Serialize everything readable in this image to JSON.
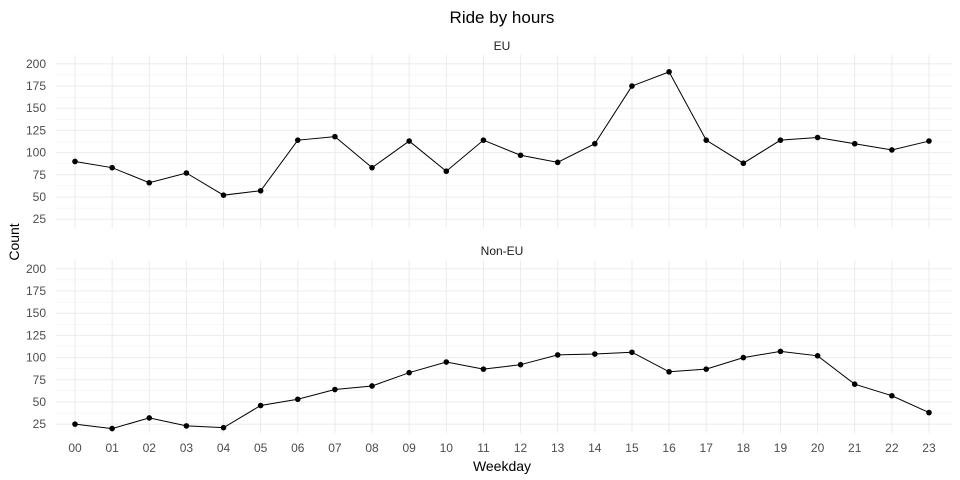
{
  "chart_data": {
    "type": "line",
    "title": "Ride by hours",
    "xlabel": "Weekday",
    "ylabel": "Count",
    "ylim": [
      15,
      210
    ],
    "yticks": [
      25,
      50,
      75,
      100,
      125,
      150,
      175,
      200
    ],
    "grid": true,
    "categories": [
      "00",
      "01",
      "02",
      "03",
      "04",
      "05",
      "06",
      "07",
      "08",
      "09",
      "10",
      "11",
      "12",
      "13",
      "14",
      "15",
      "16",
      "17",
      "18",
      "19",
      "20",
      "21",
      "22",
      "23"
    ],
    "panels": [
      {
        "strip": "EU",
        "values": [
          90,
          83,
          66,
          77,
          52,
          57,
          114,
          118,
          83,
          113,
          79,
          114,
          97,
          89,
          110,
          175,
          191,
          114,
          88,
          114,
          117,
          110,
          103,
          113
        ]
      },
      {
        "strip": "Non-EU",
        "values": [
          25,
          20,
          32,
          23,
          21,
          46,
          53,
          64,
          68,
          83,
          95,
          87,
          92,
          103,
          104,
          106,
          84,
          87,
          100,
          107,
          102,
          70,
          57,
          38
        ]
      }
    ]
  }
}
